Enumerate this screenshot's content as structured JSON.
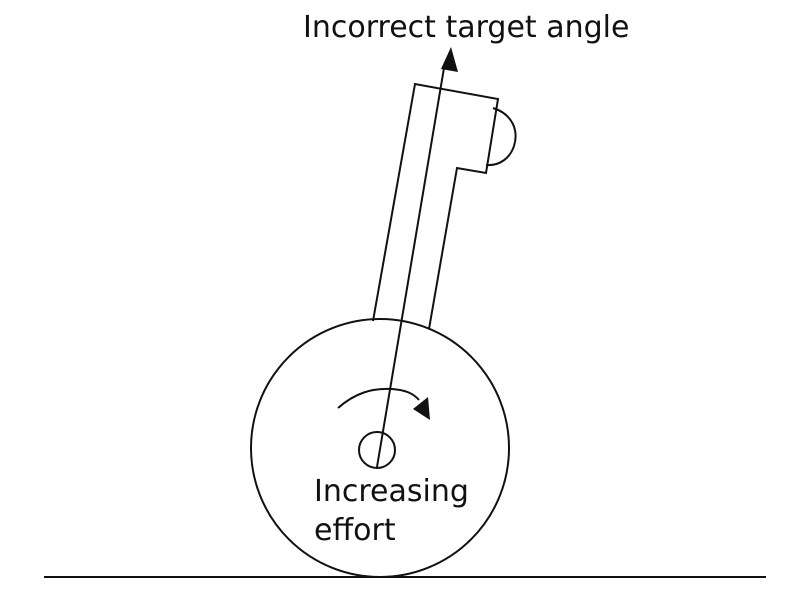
{
  "diagram": {
    "title": "Incorrect target angle",
    "effort_label_line1": "Increasing",
    "effort_label_line2": "effort"
  },
  "colors": {
    "ink": "#111111",
    "background": "#ffffff"
  }
}
